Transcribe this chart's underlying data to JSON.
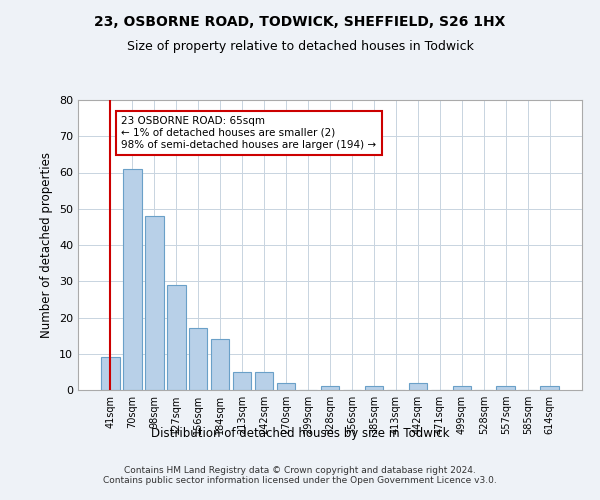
{
  "title": "23, OSBORNE ROAD, TODWICK, SHEFFIELD, S26 1HX",
  "subtitle": "Size of property relative to detached houses in Todwick",
  "xlabel": "Distribution of detached houses by size in Todwick",
  "ylabel": "Number of detached properties",
  "categories": [
    "41sqm",
    "70sqm",
    "98sqm",
    "127sqm",
    "156sqm",
    "184sqm",
    "213sqm",
    "242sqm",
    "270sqm",
    "299sqm",
    "328sqm",
    "356sqm",
    "385sqm",
    "413sqm",
    "442sqm",
    "471sqm",
    "499sqm",
    "528sqm",
    "557sqm",
    "585sqm",
    "614sqm"
  ],
  "values": [
    9,
    61,
    48,
    29,
    17,
    14,
    5,
    5,
    2,
    0,
    1,
    0,
    1,
    0,
    2,
    0,
    1,
    0,
    1,
    0,
    1
  ],
  "ylim": [
    0,
    80
  ],
  "yticks": [
    0,
    10,
    20,
    30,
    40,
    50,
    60,
    70,
    80
  ],
  "bar_color": "#b8d0e8",
  "bar_edge_color": "#6aa0c8",
  "bar_linewidth": 0.8,
  "vline_x_index": 0,
  "vline_color": "#cc0000",
  "annotation_text": "23 OSBORNE ROAD: 65sqm\n← 1% of detached houses are smaller (2)\n98% of semi-detached houses are larger (194) →",
  "annotation_box_color": "#cc0000",
  "bg_color": "#eef2f7",
  "plot_bg_color": "#ffffff",
  "footer": "Contains HM Land Registry data © Crown copyright and database right 2024.\nContains public sector information licensed under the Open Government Licence v3.0.",
  "title_fontsize": 10,
  "subtitle_fontsize": 9,
  "xlabel_fontsize": 8.5,
  "ylabel_fontsize": 8.5
}
